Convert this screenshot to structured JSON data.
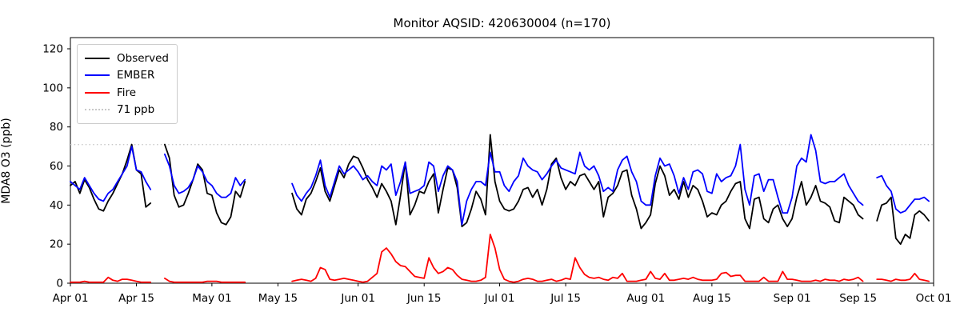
{
  "chart_data": {
    "type": "line",
    "title": "Monitor AQSID: 420630004 (n=170)",
    "xlabel": "",
    "ylabel": "MDA8 O3 (ppb)",
    "ylim": [
      0,
      125.6
    ],
    "yticks": [
      0,
      20,
      40,
      60,
      80,
      100,
      120
    ],
    "x_axis": {
      "unit": "day-of-season, daily values Apr 01 through Sep 30",
      "n_days": 183,
      "ticks": [
        {
          "day": 0,
          "label": "Apr 01"
        },
        {
          "day": 14,
          "label": "Apr 15"
        },
        {
          "day": 30,
          "label": "May 01"
        },
        {
          "day": 44,
          "label": "May 15"
        },
        {
          "day": 61,
          "label": "Jun 01"
        },
        {
          "day": 75,
          "label": "Jun 15"
        },
        {
          "day": 91,
          "label": "Jul 01"
        },
        {
          "day": 105,
          "label": "Jul 15"
        },
        {
          "day": 122,
          "label": "Aug 01"
        },
        {
          "day": 136,
          "label": "Aug 15"
        },
        {
          "day": 153,
          "label": "Sep 01"
        },
        {
          "day": 167,
          "label": "Sep 15"
        },
        {
          "day": 183,
          "label": "Oct 01"
        }
      ]
    },
    "threshold": {
      "value": 71,
      "label": "71 ppb",
      "color": "#c8c8c8",
      "style": "dotted"
    },
    "missing_data_gaps": [
      "Apr 19-20",
      "May 09-17",
      "Sep 17-18"
    ],
    "n_observations": 170,
    "legend_position": "upper left",
    "series": [
      {
        "name": "Observed",
        "color": "#000000",
        "values": [
          50,
          52,
          46,
          53,
          49,
          43,
          38,
          37,
          42,
          46,
          51,
          56,
          63,
          71,
          58,
          56,
          39,
          41,
          null,
          null,
          71,
          64,
          45,
          39,
          40,
          46,
          53,
          61,
          58,
          46,
          45,
          36,
          31,
          30,
          34,
          47,
          44,
          52,
          null,
          null,
          null,
          null,
          null,
          null,
          null,
          null,
          null,
          46,
          38,
          35,
          43,
          46,
          52,
          59,
          47,
          42,
          50,
          58,
          54,
          61,
          65,
          64,
          59,
          53,
          49,
          44,
          51,
          47,
          42,
          30,
          45,
          62,
          35,
          40,
          47,
          46,
          52,
          56,
          36,
          48,
          59,
          58,
          49,
          29,
          31,
          38,
          47,
          43,
          35,
          76,
          52,
          42,
          38,
          37,
          38,
          42,
          48,
          49,
          44,
          48,
          40,
          48,
          61,
          64,
          54,
          48,
          52,
          50,
          55,
          56,
          52,
          48,
          52,
          34,
          44,
          46,
          50,
          57,
          58,
          45,
          38,
          28,
          31,
          35,
          51,
          60,
          55,
          45,
          48,
          43,
          52,
          44,
          50,
          48,
          42,
          34,
          36,
          35,
          40,
          42,
          47,
          51,
          52,
          33,
          28,
          43,
          44,
          33,
          31,
          38,
          40,
          33,
          29,
          33,
          44,
          52,
          40,
          44,
          50,
          42,
          41,
          39,
          32,
          31,
          44,
          42,
          40,
          35,
          33,
          null,
          null,
          32,
          40,
          41,
          44,
          23,
          20,
          25,
          23,
          35,
          37,
          35,
          32
        ]
      },
      {
        "name": "EMBER",
        "color": "#0000ff",
        "values": [
          52,
          50,
          48,
          54,
          50,
          46,
          43,
          42,
          46,
          48,
          52,
          56,
          60,
          70,
          58,
          57,
          52,
          48,
          null,
          null,
          66,
          60,
          50,
          46,
          47,
          49,
          53,
          60,
          57,
          52,
          50,
          46,
          44,
          44,
          46,
          54,
          50,
          53,
          null,
          null,
          null,
          null,
          null,
          null,
          null,
          null,
          null,
          51,
          45,
          42,
          46,
          49,
          55,
          63,
          50,
          44,
          52,
          60,
          56,
          58,
          60,
          57,
          53,
          55,
          52,
          50,
          60,
          58,
          61,
          45,
          52,
          62,
          46,
          47,
          48,
          50,
          62,
          60,
          47,
          55,
          60,
          58,
          52,
          30,
          42,
          48,
          52,
          52,
          50,
          67,
          57,
          57,
          50,
          47,
          52,
          55,
          64,
          60,
          58,
          57,
          53,
          56,
          60,
          63,
          59,
          58,
          57,
          56,
          67,
          60,
          58,
          60,
          55,
          47,
          49,
          47,
          58,
          63,
          65,
          57,
          52,
          42,
          40,
          40,
          55,
          64,
          60,
          61,
          55,
          46,
          54,
          48,
          57,
          58,
          56,
          47,
          46,
          56,
          52,
          54,
          55,
          60,
          71,
          48,
          40,
          55,
          56,
          47,
          53,
          53,
          44,
          36,
          36,
          44,
          60,
          64,
          62,
          76,
          68,
          52,
          51,
          52,
          52,
          54,
          56,
          50,
          46,
          42,
          40,
          null,
          null,
          54,
          55,
          50,
          47,
          38,
          36,
          37,
          40,
          43,
          43,
          44,
          42
        ]
      },
      {
        "name": "Fire",
        "color": "#ff0000",
        "values": [
          0.5,
          0.5,
          0.5,
          1,
          0.5,
          0.5,
          0.5,
          0.5,
          3,
          1.5,
          1,
          2,
          2,
          1.5,
          1,
          0.5,
          0.5,
          0.5,
          null,
          null,
          2.5,
          1,
          0.5,
          0.5,
          0.5,
          0.5,
          0.5,
          0.5,
          0.5,
          1,
          1,
          1,
          0.5,
          0.5,
          0.5,
          0.5,
          0.5,
          0.5,
          null,
          null,
          null,
          null,
          null,
          null,
          null,
          null,
          null,
          1,
          1.5,
          2,
          1.5,
          1,
          2.5,
          8,
          7,
          2,
          1.5,
          2,
          2.5,
          2,
          1.5,
          1,
          0.5,
          1,
          3,
          5,
          16,
          18,
          15,
          11,
          9,
          8.5,
          6,
          3.5,
          3,
          2.5,
          13,
          8,
          5,
          6,
          8,
          7,
          4,
          2,
          1.5,
          1,
          1,
          1.5,
          3,
          25,
          18,
          7,
          2,
          1,
          0.5,
          1,
          2,
          2.5,
          2,
          1,
          1,
          1.5,
          2,
          1,
          1.5,
          2.5,
          2,
          13,
          8,
          4.5,
          3,
          2.5,
          3,
          2,
          1.5,
          3,
          2.5,
          5,
          1,
          1,
          1,
          1.5,
          2,
          6,
          2.5,
          2,
          5,
          1.5,
          1.5,
          2,
          2.5,
          2,
          3,
          2,
          1.5,
          1.5,
          1.5,
          2,
          5,
          5.5,
          3.5,
          4,
          4,
          1,
          1,
          1,
          1,
          3,
          1,
          1,
          1,
          6,
          2,
          2,
          1.5,
          1,
          1,
          1,
          1.5,
          1,
          2,
          1.5,
          1.5,
          1,
          2,
          1.5,
          2,
          3,
          1,
          null,
          null,
          2,
          2,
          1.5,
          1,
          2,
          1.5,
          1.5,
          2,
          5,
          2,
          1.5,
          1
        ]
      }
    ],
    "legend": {
      "items": [
        {
          "label": "Observed",
          "color": "#000000",
          "style": "solid"
        },
        {
          "label": "EMBER",
          "color": "#0000ff",
          "style": "solid"
        },
        {
          "label": "Fire",
          "color": "#ff0000",
          "style": "solid"
        },
        {
          "label": "71 ppb",
          "color": "#c8c8c8",
          "style": "dotted"
        }
      ]
    }
  }
}
